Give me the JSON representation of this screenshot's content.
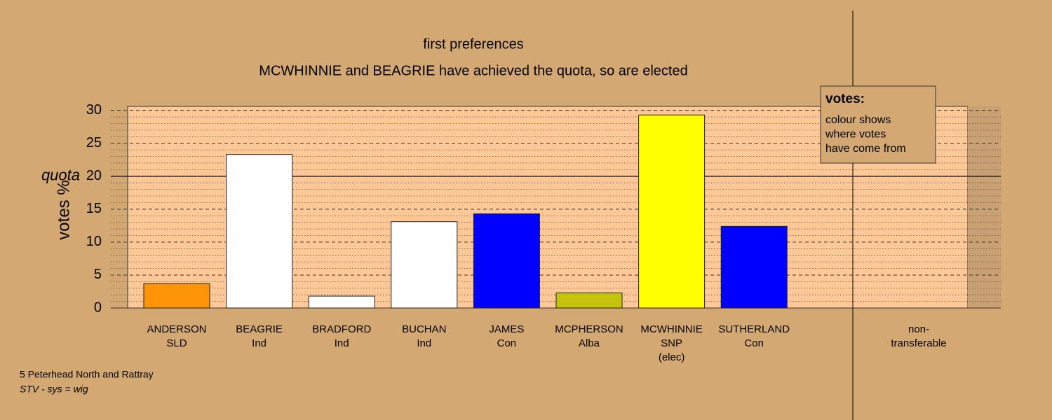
{
  "chart_data": {
    "type": "bar",
    "title": "first preferences",
    "subtitle": "MCWHINNIE and BEAGRIE have achieved the quota, so are elected",
    "y_label": "votes %",
    "categories": [
      [
        "ANDERSON",
        "SLD"
      ],
      [
        "BEAGRIE",
        "Ind"
      ],
      [
        "BRADFORD",
        "Ind"
      ],
      [
        "BUCHAN",
        "Ind"
      ],
      [
        "JAMES",
        "Con"
      ],
      [
        "MCPHERSON",
        "Alba"
      ],
      [
        "MCWHINNIE",
        "SNP",
        "(elec)"
      ],
      [
        "SUTHERLAND",
        "Con"
      ],
      [
        "non-",
        "transferable"
      ]
    ],
    "values": [
      3.7,
      23.3,
      1.8,
      13.1,
      14.3,
      2.3,
      29.3,
      12.4,
      0
    ],
    "colors": [
      "#ff9409",
      "#ffffff",
      "#ffffff",
      "#ffffff",
      "#0000ff",
      "#c4c40c",
      "#ffff00",
      "#0000ff",
      "#ffffff"
    ],
    "ylim": [
      0,
      30.6
    ],
    "yticks": [
      0,
      5,
      10,
      15,
      20,
      25,
      30
    ],
    "minor_yticks": [
      1,
      2,
      3,
      4,
      6,
      7,
      8,
      9,
      11,
      12,
      13,
      14,
      16,
      17,
      18,
      19,
      21,
      22,
      23,
      24,
      26,
      27,
      28,
      29
    ],
    "quota": {
      "value": 20,
      "label": "quota"
    },
    "legend": {
      "title": "votes:",
      "lines": [
        "colour shows",
        "where votes",
        "have come from"
      ]
    },
    "footer": [
      "5 Peterhead North and Rattray",
      "STV - sys = wig"
    ]
  }
}
